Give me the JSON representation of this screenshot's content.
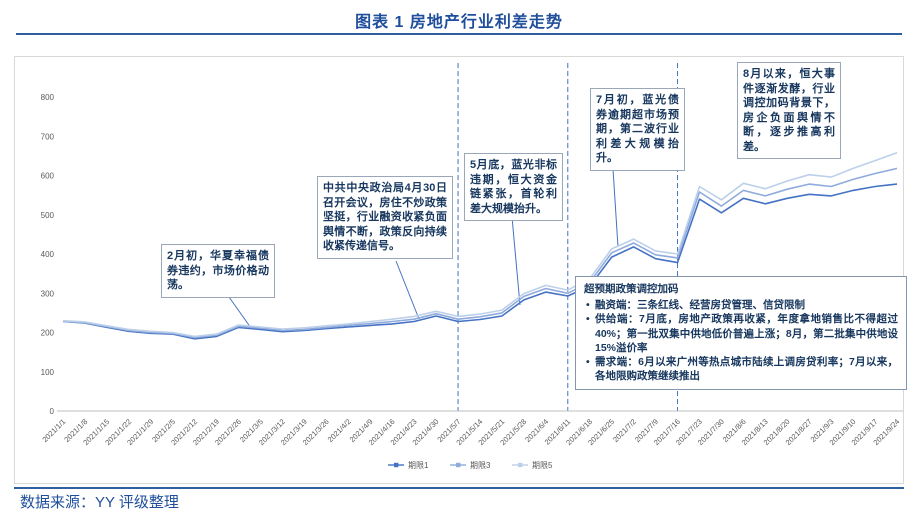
{
  "header": {
    "title": "图表 1 房地产行业利差走势"
  },
  "footer": {
    "source": "数据来源：YY 评级整理"
  },
  "annotations": [
    {
      "text": "2月初，华夏幸福债券违约，市场价格动荡。"
    },
    {
      "text": "中共中央政治局4月30日召开会议，房住不炒政策坚挺，行业融资收紧负面舆情不断，政策反向持续收紧传递信号。"
    },
    {
      "text": "5月底，蓝光非标违期，恒大资金链紧张，首轮利差大规模抬升。"
    },
    {
      "text": "7月初，蓝光债券逾期超市场预期，第二波行业利差大规模抬升。"
    },
    {
      "text": "8月以来，恒大事件逐渐发酵，行业调控加码背景下，房企负面舆情不断，逐步推高利差。"
    }
  ],
  "policy_box": {
    "title": "超预期政策调控加码",
    "bullets": [
      "融资端：三条红线、经营房贷管理、信贷限制",
      "供给端：7月底，房地产政策再收紧，年度拿地销售比不得超过40%；第一批双集中供地低价普遍上涨；8月，第二批集中供地设15%溢价率",
      "需求端：6月以来广州等热点城市陆续上调房贷利率；7月以来，各地限购政策继续推出"
    ]
  },
  "chart_data": {
    "type": "line",
    "title": "图表 1 房地产行业利差走势",
    "xlabel": "",
    "ylabel": "",
    "ylim": [
      0,
      800
    ],
    "yticks": [
      0,
      100,
      200,
      300,
      400,
      500,
      600,
      700,
      800
    ],
    "grid": false,
    "legend_position": "bottom",
    "event_lines": [
      "2021/5/7",
      "2021/6/11",
      "2021/7/16"
    ],
    "x": [
      "2021/1/1",
      "2021/1/8",
      "2021/1/15",
      "2021/1/22",
      "2021/1/29",
      "2021/2/5",
      "2021/2/12",
      "2021/2/19",
      "2021/2/26",
      "2021/3/5",
      "2021/3/12",
      "2021/3/19",
      "2021/3/26",
      "2021/4/2",
      "2021/4/9",
      "2021/4/16",
      "2021/4/23",
      "2021/4/30",
      "2021/5/7",
      "2021/5/14",
      "2021/5/21",
      "2021/5/28",
      "2021/6/4",
      "2021/6/11",
      "2021/6/18",
      "2021/6/25",
      "2021/7/2",
      "2021/7/9",
      "2021/7/16",
      "2021/7/23",
      "2021/7/30",
      "2021/8/6",
      "2021/8/13",
      "2021/8/20",
      "2021/8/27",
      "2021/9/3",
      "2021/9/10",
      "2021/9/17",
      "2021/9/24"
    ],
    "series": [
      {
        "name": "期限1",
        "color": "#4472c4",
        "values": [
          228,
          224,
          213,
          203,
          198,
          196,
          184,
          190,
          213,
          208,
          202,
          205,
          210,
          214,
          218,
          222,
          228,
          242,
          228,
          233,
          242,
          283,
          303,
          293,
          318,
          392,
          418,
          388,
          378,
          540,
          505,
          542,
          528,
          542,
          552,
          548,
          562,
          572,
          578
        ]
      },
      {
        "name": "期限3",
        "color": "#8faadc",
        "values": [
          228,
          225,
          215,
          205,
          200,
          198,
          187,
          193,
          216,
          211,
          205,
          208,
          213,
          218,
          223,
          228,
          234,
          248,
          234,
          240,
          250,
          292,
          312,
          300,
          328,
          403,
          428,
          398,
          390,
          558,
          522,
          562,
          548,
          565,
          578,
          572,
          590,
          605,
          618
        ]
      },
      {
        "name": "期限5",
        "color": "#bdd0ea",
        "values": [
          230,
          227,
          217,
          208,
          203,
          200,
          190,
          196,
          219,
          214,
          209,
          212,
          217,
          222,
          228,
          234,
          241,
          254,
          241,
          247,
          257,
          299,
          320,
          308,
          337,
          413,
          438,
          408,
          400,
          572,
          538,
          580,
          566,
          586,
          602,
          596,
          618,
          638,
          658
        ]
      }
    ]
  }
}
